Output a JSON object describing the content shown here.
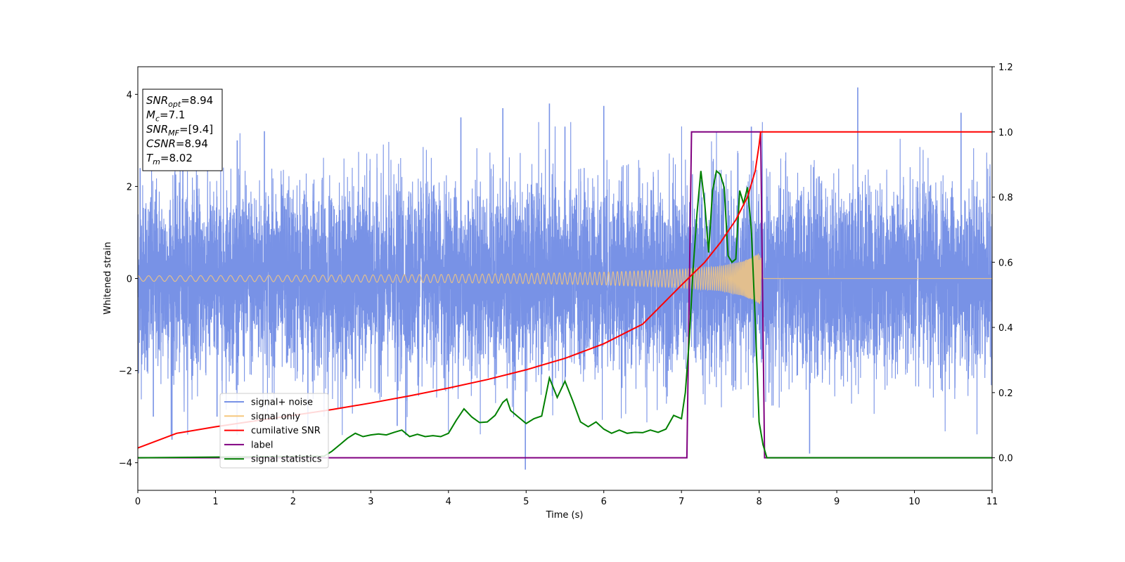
{
  "chart_data": {
    "type": "line",
    "title": "",
    "xlabel": "Time (s)",
    "ylabel": "Whitened strain",
    "xlim": [
      0,
      11
    ],
    "ylim": [
      -4.6,
      4.6
    ],
    "y2lim": [
      -0.1,
      1.2
    ],
    "x_ticks": [
      "0",
      "1",
      "2",
      "3",
      "4",
      "5",
      "6",
      "7",
      "8",
      "9",
      "10",
      "11"
    ],
    "y_ticks": [
      "−4",
      "−2",
      "0",
      "2",
      "4"
    ],
    "y2_ticks": [
      "0.0",
      "0.2",
      "0.4",
      "0.6",
      "0.8",
      "1.0",
      "1.2"
    ],
    "legend_location": "lower-left",
    "info_box": [
      {
        "base": "SNR",
        "sub": "opt",
        "value": "=8.94"
      },
      {
        "base": "M",
        "sub": "c",
        "value": "=7.1"
      },
      {
        "base": "SNR",
        "sub": "MF",
        "value": "=[9.4]"
      },
      {
        "base": "CSNR",
        "sub": "",
        "value": "=8.94"
      },
      {
        "base": "T",
        "sub": "m",
        "value": "=8.02"
      }
    ],
    "series": [
      {
        "name": "signal+ noise",
        "axis": "left",
        "color": "#7892e6",
        "description_stats": {
          "mean": 0,
          "std": 1.0,
          "range": [
            -4.2,
            4.2
          ]
        },
        "spikes": [
          [
            0.03,
            2.4
          ],
          [
            0.2,
            -3.0
          ],
          [
            0.44,
            -3.5
          ],
          [
            0.58,
            2.7
          ],
          [
            1.02,
            -3.0
          ],
          [
            1.28,
            3.0
          ],
          [
            1.63,
            3.2
          ],
          [
            2.19,
            -3.2
          ],
          [
            3.34,
            -3.2
          ],
          [
            3.45,
            -3.4
          ],
          [
            4.16,
            3.5
          ],
          [
            4.7,
            3.7
          ],
          [
            4.99,
            -4.15
          ],
          [
            5.3,
            3.8
          ],
          [
            5.5,
            3.3
          ],
          [
            6.0,
            3.75
          ],
          [
            7.9,
            3.3
          ],
          [
            8.65,
            -3.8
          ],
          [
            9.27,
            4.15
          ],
          [
            10.6,
            3.6
          ]
        ]
      },
      {
        "name": "signal only",
        "axis": "left",
        "color": "#f5c77e",
        "envelope": {
          "x": [
            0,
            2,
            4,
            5,
            6,
            7,
            7.5,
            7.8,
            8.0,
            8.02,
            8.05,
            11
          ],
          "amp": [
            0.06,
            0.07,
            0.09,
            0.11,
            0.14,
            0.2,
            0.27,
            0.38,
            0.55,
            0.6,
            0,
            0
          ]
        }
      },
      {
        "name": "cumilative SNR",
        "axis": "right",
        "color": "#ff0000",
        "x": [
          0,
          0.5,
          1,
          1.5,
          2,
          2.5,
          3,
          3.5,
          4,
          4.5,
          5,
          5.5,
          6,
          6.5,
          7,
          7.3,
          7.5,
          7.7,
          7.85,
          7.95,
          8.0,
          8.02,
          11
        ],
        "y": [
          0.03,
          0.075,
          0.095,
          0.113,
          0.13,
          0.148,
          0.168,
          0.19,
          0.214,
          0.24,
          0.27,
          0.305,
          0.35,
          0.41,
          0.53,
          0.6,
          0.66,
          0.73,
          0.8,
          0.88,
          0.96,
          1.0,
          1.0
        ]
      },
      {
        "name": "label",
        "axis": "right",
        "color": "#800080",
        "x": [
          0,
          7.07,
          7.13,
          8.02,
          8.07,
          11
        ],
        "y": [
          0,
          0,
          1,
          1,
          0,
          0
        ]
      },
      {
        "name": "signal statistics",
        "axis": "right",
        "color": "#008000",
        "x": [
          0,
          2.4,
          2.5,
          2.6,
          2.7,
          2.8,
          2.9,
          3.0,
          3.1,
          3.2,
          3.3,
          3.4,
          3.5,
          3.6,
          3.7,
          3.8,
          3.9,
          4.0,
          4.1,
          4.2,
          4.3,
          4.4,
          4.5,
          4.6,
          4.7,
          4.75,
          4.8,
          4.9,
          5.0,
          5.1,
          5.2,
          5.3,
          5.4,
          5.5,
          5.6,
          5.7,
          5.8,
          5.9,
          6.0,
          6.1,
          6.2,
          6.3,
          6.4,
          6.5,
          6.6,
          6.7,
          6.8,
          6.9,
          7.0,
          7.05,
          7.1,
          7.15,
          7.2,
          7.25,
          7.3,
          7.35,
          7.4,
          7.45,
          7.5,
          7.55,
          7.6,
          7.65,
          7.7,
          7.75,
          7.8,
          7.85,
          7.9,
          7.95,
          8.0,
          8.05,
          8.1,
          8.2,
          11
        ],
        "y": [
          0.0,
          0.005,
          0.02,
          0.04,
          0.06,
          0.075,
          0.065,
          0.07,
          0.073,
          0.07,
          0.078,
          0.085,
          0.065,
          0.072,
          0.065,
          0.068,
          0.065,
          0.075,
          0.115,
          0.15,
          0.125,
          0.108,
          0.11,
          0.13,
          0.17,
          0.18,
          0.145,
          0.125,
          0.105,
          0.12,
          0.128,
          0.245,
          0.185,
          0.235,
          0.175,
          0.11,
          0.095,
          0.11,
          0.088,
          0.075,
          0.085,
          0.075,
          0.078,
          0.077,
          0.085,
          0.078,
          0.088,
          0.13,
          0.12,
          0.2,
          0.36,
          0.58,
          0.75,
          0.88,
          0.78,
          0.63,
          0.82,
          0.88,
          0.87,
          0.83,
          0.62,
          0.6,
          0.61,
          0.82,
          0.78,
          0.83,
          0.7,
          0.42,
          0.11,
          0.04,
          0.0,
          0.0,
          0.0
        ]
      }
    ]
  }
}
